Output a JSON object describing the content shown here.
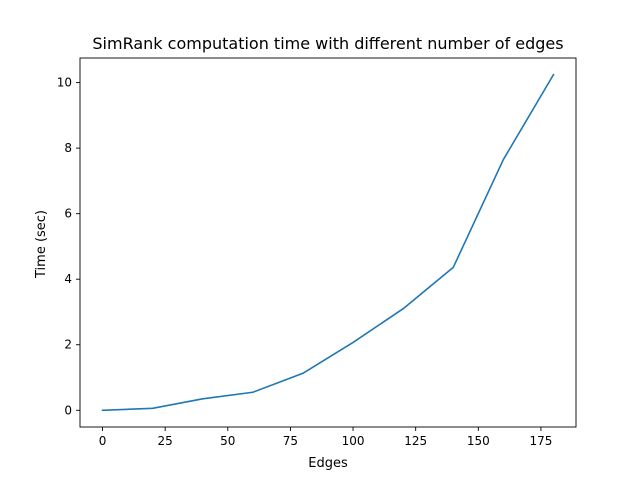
{
  "chart_data": {
    "type": "line",
    "title": "SimRank computation time with different number of edges",
    "xlabel": "Edges",
    "ylabel": "Time (sec)",
    "xlim": [
      -9,
      189
    ],
    "ylim": [
      -0.51,
      10.75
    ],
    "xticks": [
      0,
      25,
      50,
      75,
      100,
      125,
      150,
      175
    ],
    "yticks": [
      0,
      2,
      4,
      6,
      8,
      10
    ],
    "grid": false,
    "series": [
      {
        "color": "#1f77b4",
        "x": [
          0,
          20,
          40,
          60,
          80,
          100,
          120,
          140,
          160,
          180
        ],
        "y": [
          0.0,
          0.06,
          0.35,
          0.55,
          1.13,
          2.07,
          3.1,
          4.36,
          7.65,
          10.24
        ]
      }
    ]
  }
}
